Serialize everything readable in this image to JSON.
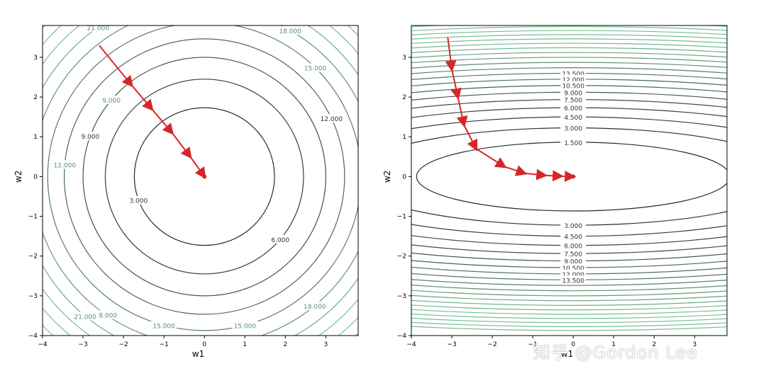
{
  "watermark": "知乎 @Gordon Lee",
  "chart_data": [
    {
      "type": "contour",
      "function": "w1^2 + w2^2",
      "xlabel": "w1",
      "ylabel": "w2",
      "xlim": [
        -4,
        3.8
      ],
      "ylim": [
        -4,
        3.8
      ],
      "xticks": [
        "−4",
        "−3",
        "−2",
        "−1",
        "0",
        "1",
        "2",
        "3"
      ],
      "yticks": [
        "3",
        "2",
        "1",
        "0",
        "−1",
        "−2",
        "−3",
        "−4"
      ],
      "levels": [
        3,
        6,
        9,
        12,
        15,
        18,
        21,
        24,
        27,
        30
      ],
      "level_labels": [
        "3.000",
        "6.000",
        "9.000",
        "12.000",
        "15.000",
        "18.000",
        "21.000",
        "18.000",
        "15.000",
        "12.000",
        "9.000",
        "21.000",
        "18.000",
        "15.000"
      ],
      "path": [
        [
          -2.6,
          3.3
        ],
        [
          -1.8,
          2.3
        ],
        [
          -1.3,
          1.7
        ],
        [
          -0.8,
          1.1
        ],
        [
          -0.35,
          0.5
        ],
        [
          0,
          0
        ]
      ],
      "colors": {
        "contour": "#2f2f2f",
        "path": "#d62728"
      }
    },
    {
      "type": "contour",
      "function": "0.1*w1^2 + 2*w2^2",
      "xlabel": "w1",
      "ylabel": "w2",
      "xlim": [
        -4,
        3.8
      ],
      "ylim": [
        -4,
        3.8
      ],
      "xticks": [
        "−4",
        "−3",
        "−2",
        "−1",
        "0",
        "1",
        "2",
        "3"
      ],
      "yticks": [
        "3",
        "2",
        "1",
        "0",
        "−1",
        "−2",
        "−3",
        "−4"
      ],
      "levels": [
        1.5,
        3,
        4.5,
        6,
        7.5,
        9,
        10.5,
        12,
        13.5,
        15,
        16.5,
        18,
        19.5,
        21,
        22.5,
        24,
        25.5,
        27,
        28.5,
        30
      ],
      "level_labels": [
        "13.500",
        "12.000",
        "10.500",
        "9.000",
        "7.500",
        "6.000",
        "4.500",
        "3.000",
        "1.500",
        "3.000",
        "4.500",
        "6.000",
        "7.500",
        "9.000",
        "10.500",
        "12.000",
        "13.500"
      ],
      "path": [
        [
          -3.1,
          3.5
        ],
        [
          -3.0,
          2.7
        ],
        [
          -2.85,
          2.0
        ],
        [
          -2.7,
          1.3
        ],
        [
          -2.4,
          0.7
        ],
        [
          -1.7,
          0.25
        ],
        [
          -1.2,
          0.08
        ],
        [
          -0.7,
          0.03
        ],
        [
          -0.3,
          0.01
        ],
        [
          0,
          0
        ]
      ],
      "colors": {
        "contour": "#2f2f2f",
        "path": "#d62728"
      }
    }
  ]
}
